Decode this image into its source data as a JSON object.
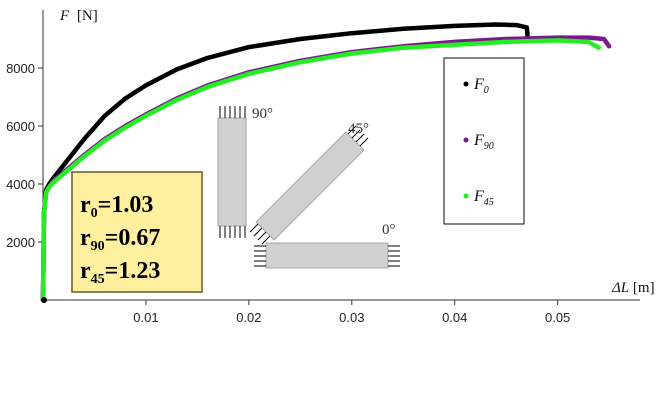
{
  "chart_data": {
    "type": "line",
    "xlabel_symbol": "ΔL",
    "xlabel_unit": "[m]",
    "ylabel_symbol": "F",
    "ylabel_unit": "[N]",
    "xlim": [
      0,
      0.058
    ],
    "ylim": [
      0,
      10000
    ],
    "xticks": [
      0.01,
      0.02,
      0.03,
      0.04,
      0.05
    ],
    "xtick_labels": [
      "0.01",
      "0.02",
      "0.03",
      "0.04",
      "0.05"
    ],
    "yticks": [
      2000,
      4000,
      6000,
      8000
    ],
    "ytick_labels": [
      "2000",
      "4000",
      "6000",
      "8000"
    ],
    "legend_position": "right",
    "series": [
      {
        "name": "F0",
        "base": "F",
        "sub": "0",
        "color": "#000000",
        "x": [
          0,
          0.0001,
          0.0003,
          0.0006,
          0.001,
          0.002,
          0.004,
          0.006,
          0.008,
          0.01,
          0.013,
          0.016,
          0.02,
          0.025,
          0.03,
          0.035,
          0.04,
          0.044,
          0.046,
          0.047,
          0.0471
        ],
        "y": [
          0,
          3000,
          3800,
          4000,
          4200,
          4650,
          5550,
          6350,
          6950,
          7400,
          7950,
          8350,
          8720,
          9000,
          9200,
          9350,
          9450,
          9500,
          9480,
          9400,
          9000
        ]
      },
      {
        "name": "F90",
        "base": "F",
        "sub": "90",
        "color": "#7a1a8a",
        "x": [
          0,
          0.0001,
          0.0003,
          0.0006,
          0.001,
          0.002,
          0.004,
          0.006,
          0.008,
          0.01,
          0.013,
          0.016,
          0.02,
          0.025,
          0.03,
          0.035,
          0.04,
          0.045,
          0.05,
          0.053,
          0.0545,
          0.055
        ],
        "y": [
          0,
          3000,
          3700,
          3900,
          4100,
          4400,
          5000,
          5550,
          6000,
          6400,
          6950,
          7400,
          7850,
          8250,
          8550,
          8750,
          8900,
          9000,
          9050,
          9050,
          9000,
          8750
        ]
      },
      {
        "name": "F45",
        "base": "F",
        "sub": "45",
        "color": "#22ee22",
        "x": [
          0,
          0.0001,
          0.0003,
          0.0006,
          0.001,
          0.002,
          0.004,
          0.006,
          0.008,
          0.01,
          0.013,
          0.016,
          0.02,
          0.025,
          0.03,
          0.035,
          0.04,
          0.045,
          0.05,
          0.053,
          0.054
        ],
        "y": [
          0,
          3000,
          3700,
          3900,
          4050,
          4350,
          4950,
          5500,
          5950,
          6350,
          6900,
          7350,
          7800,
          8200,
          8500,
          8700,
          8800,
          8900,
          8950,
          8900,
          8700
        ]
      }
    ],
    "r_values": [
      {
        "base": "r",
        "sub": "0",
        "value": "=1.03"
      },
      {
        "base": "r",
        "sub": "90",
        "value": "=0.67"
      },
      {
        "base": "r",
        "sub": "45",
        "value": "=1.23"
      }
    ],
    "orientation_labels": [
      "90°",
      "45°",
      "0°"
    ],
    "colors": {
      "rbox_fill": "#fff0a0",
      "rbox_border": "#6a5a2a",
      "specimen_fill": "#d0d0d0"
    }
  }
}
